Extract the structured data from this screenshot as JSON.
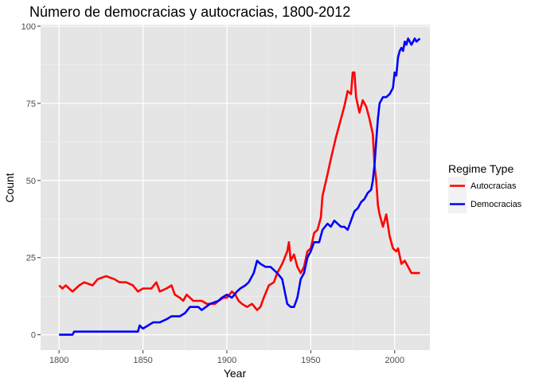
{
  "chart_data": {
    "type": "line",
    "title": "Número de democracias y autocracias, 1800-2012",
    "xlabel": "Year",
    "ylabel": "Count",
    "xlim": [
      1789,
      2021
    ],
    "ylim": [
      -5,
      100.5
    ],
    "x_ticks": [
      1800,
      1850,
      1900,
      1950,
      2000
    ],
    "y_ticks": [
      0,
      25,
      50,
      75,
      100
    ],
    "grid": true,
    "background": "#e5e5e5",
    "gridline_color": "#ffffff",
    "legend": {
      "title": "Regime Type",
      "position": "right"
    },
    "series": [
      {
        "name": "Autocracias",
        "color": "#ff0000",
        "points": [
          [
            1800,
            16
          ],
          [
            1802,
            15
          ],
          [
            1804,
            16
          ],
          [
            1806,
            15
          ],
          [
            1808,
            14
          ],
          [
            1810,
            15
          ],
          [
            1812,
            16
          ],
          [
            1815,
            17
          ],
          [
            1820,
            16
          ],
          [
            1823,
            18
          ],
          [
            1828,
            19
          ],
          [
            1833,
            18
          ],
          [
            1836,
            17
          ],
          [
            1840,
            17
          ],
          [
            1844,
            16
          ],
          [
            1847,
            14
          ],
          [
            1850,
            15
          ],
          [
            1855,
            15
          ],
          [
            1858,
            17
          ],
          [
            1860,
            14
          ],
          [
            1864,
            15
          ],
          [
            1867,
            16
          ],
          [
            1869,
            13
          ],
          [
            1872,
            12
          ],
          [
            1874,
            11
          ],
          [
            1876,
            13
          ],
          [
            1878,
            12
          ],
          [
            1880,
            11
          ],
          [
            1885,
            11
          ],
          [
            1888,
            10
          ],
          [
            1893,
            10
          ],
          [
            1895,
            11
          ],
          [
            1898,
            12
          ],
          [
            1900,
            12
          ],
          [
            1903,
            14
          ],
          [
            1905,
            13
          ],
          [
            1907,
            11
          ],
          [
            1909,
            10
          ],
          [
            1912,
            9
          ],
          [
            1915,
            10
          ],
          [
            1918,
            8
          ],
          [
            1920,
            9
          ],
          [
            1922,
            12
          ],
          [
            1925,
            16
          ],
          [
            1928,
            17
          ],
          [
            1930,
            20
          ],
          [
            1933,
            23
          ],
          [
            1936,
            27
          ],
          [
            1937,
            30
          ],
          [
            1938,
            24
          ],
          [
            1940,
            26
          ],
          [
            1942,
            22
          ],
          [
            1944,
            20
          ],
          [
            1946,
            22
          ],
          [
            1948,
            27
          ],
          [
            1950,
            28
          ],
          [
            1952,
            33
          ],
          [
            1954,
            34
          ],
          [
            1956,
            38
          ],
          [
            1957,
            45
          ],
          [
            1960,
            52
          ],
          [
            1962,
            57
          ],
          [
            1965,
            64
          ],
          [
            1967,
            68
          ],
          [
            1970,
            74
          ],
          [
            1972,
            79
          ],
          [
            1974,
            78
          ],
          [
            1975,
            85
          ],
          [
            1976,
            85
          ],
          [
            1977,
            77
          ],
          [
            1979,
            72
          ],
          [
            1981,
            76
          ],
          [
            1983,
            74
          ],
          [
            1985,
            70
          ],
          [
            1987,
            65
          ],
          [
            1988,
            55
          ],
          [
            1989,
            50
          ],
          [
            1990,
            42
          ],
          [
            1991,
            39
          ],
          [
            1993,
            35
          ],
          [
            1995,
            39
          ],
          [
            1997,
            32
          ],
          [
            1999,
            28
          ],
          [
            2001,
            27
          ],
          [
            2002,
            28
          ],
          [
            2004,
            23
          ],
          [
            2006,
            24
          ],
          [
            2008,
            22
          ],
          [
            2010,
            20
          ],
          [
            2015,
            20
          ]
        ]
      },
      {
        "name": "Democracias",
        "color": "#0000ff",
        "points": [
          [
            1800,
            0
          ],
          [
            1808,
            0
          ],
          [
            1809,
            1
          ],
          [
            1820,
            1
          ],
          [
            1840,
            1
          ],
          [
            1847,
            1
          ],
          [
            1848,
            3
          ],
          [
            1850,
            2
          ],
          [
            1853,
            3
          ],
          [
            1856,
            4
          ],
          [
            1860,
            4
          ],
          [
            1864,
            5
          ],
          [
            1867,
            6
          ],
          [
            1872,
            6
          ],
          [
            1875,
            7
          ],
          [
            1878,
            9
          ],
          [
            1883,
            9
          ],
          [
            1885,
            8
          ],
          [
            1890,
            10
          ],
          [
            1895,
            11
          ],
          [
            1897,
            12
          ],
          [
            1900,
            13
          ],
          [
            1903,
            12
          ],
          [
            1906,
            14
          ],
          [
            1908,
            15
          ],
          [
            1911,
            16
          ],
          [
            1913,
            17
          ],
          [
            1916,
            20
          ],
          [
            1918,
            24
          ],
          [
            1920,
            23
          ],
          [
            1923,
            22
          ],
          [
            1926,
            22
          ],
          [
            1928,
            21
          ],
          [
            1930,
            20
          ],
          [
            1933,
            18
          ],
          [
            1936,
            10
          ],
          [
            1938,
            9
          ],
          [
            1940,
            9
          ],
          [
            1942,
            12
          ],
          [
            1944,
            18
          ],
          [
            1946,
            20
          ],
          [
            1948,
            25
          ],
          [
            1950,
            27
          ],
          [
            1952,
            30
          ],
          [
            1955,
            30
          ],
          [
            1957,
            34
          ],
          [
            1960,
            36
          ],
          [
            1962,
            35
          ],
          [
            1964,
            37
          ],
          [
            1966,
            36
          ],
          [
            1968,
            35
          ],
          [
            1970,
            35
          ],
          [
            1972,
            34
          ],
          [
            1974,
            37
          ],
          [
            1976,
            40
          ],
          [
            1978,
            41
          ],
          [
            1980,
            43
          ],
          [
            1982,
            44
          ],
          [
            1984,
            46
          ],
          [
            1986,
            47
          ],
          [
            1987,
            50
          ],
          [
            1988,
            55
          ],
          [
            1989,
            63
          ],
          [
            1990,
            70
          ],
          [
            1991,
            75
          ],
          [
            1992,
            76
          ],
          [
            1993,
            77
          ],
          [
            1995,
            77
          ],
          [
            1997,
            78
          ],
          [
            1999,
            80
          ],
          [
            2000,
            85
          ],
          [
            2001,
            84
          ],
          [
            2002,
            90
          ],
          [
            2003,
            92
          ],
          [
            2004,
            93
          ],
          [
            2005,
            92
          ],
          [
            2006,
            95
          ],
          [
            2007,
            94
          ],
          [
            2008,
            96
          ],
          [
            2009,
            95
          ],
          [
            2010,
            94
          ],
          [
            2012,
            96
          ],
          [
            2013,
            95
          ],
          [
            2015,
            96
          ]
        ]
      }
    ]
  }
}
